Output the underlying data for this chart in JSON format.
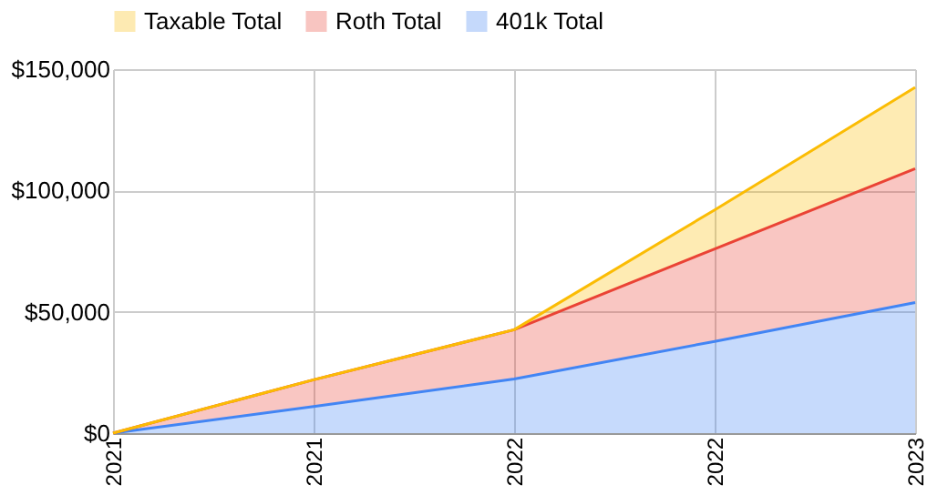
{
  "chart_data": {
    "type": "area",
    "stacked": true,
    "categories": [
      "2021",
      "2021",
      "2022",
      "2022",
      "2023"
    ],
    "series": [
      {
        "name": "401k Total",
        "color": "#4285f4",
        "values": [
          0,
          11000,
          22300,
          37800,
          53800
        ]
      },
      {
        "name": "Roth Total",
        "color": "#ea4335",
        "values": [
          0,
          11000,
          20300,
          38100,
          55200
        ]
      },
      {
        "name": "Taxable Total",
        "color": "#fbbc04",
        "values": [
          0,
          0,
          0,
          16100,
          33500
        ]
      }
    ],
    "ylim": [
      0,
      150000
    ],
    "yticks": [
      {
        "value": 0,
        "label": "$0"
      },
      {
        "value": 50000,
        "label": "$50,000"
      },
      {
        "value": 100000,
        "label": "$100,000"
      },
      {
        "value": 150000,
        "label": "$150,000"
      }
    ],
    "grid": true,
    "legend": "top"
  }
}
